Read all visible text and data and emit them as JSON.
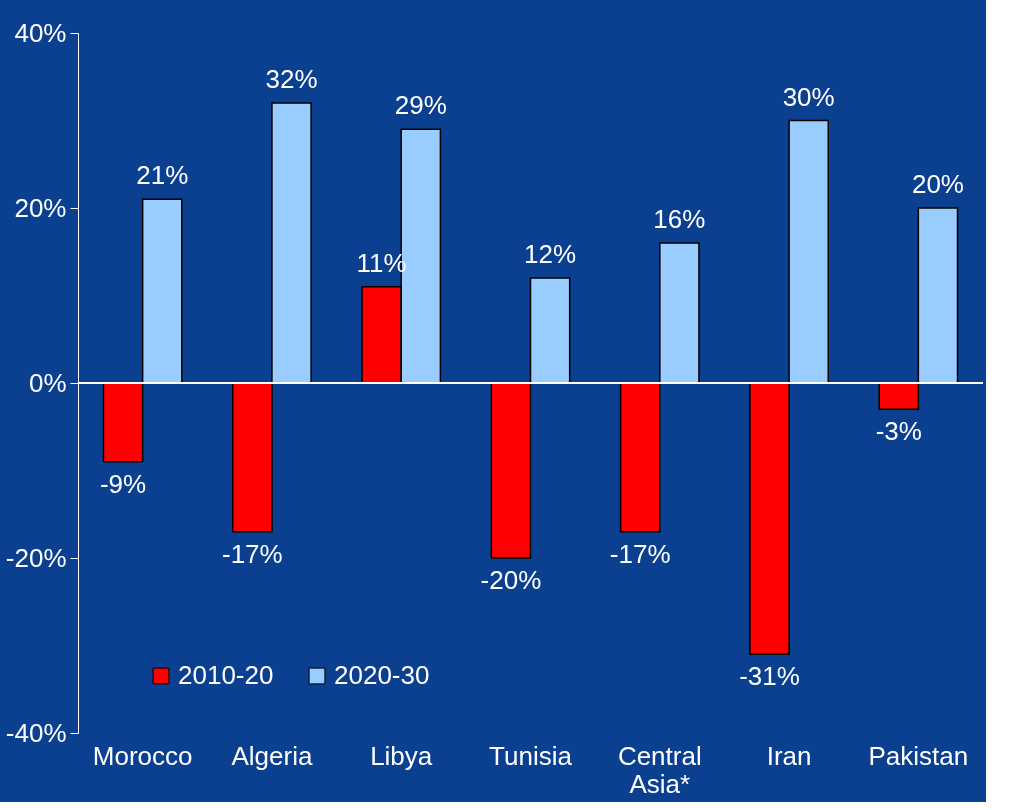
{
  "chart_data": {
    "type": "bar",
    "categories": [
      "Morocco",
      "Algeria",
      "Libya",
      "Tunisia",
      "Central Asia*",
      "Iran",
      "Pakistan"
    ],
    "series": [
      {
        "name": "2010-20",
        "color": "#ff0000",
        "values": [
          -9,
          -17,
          11,
          -20,
          -17,
          -31,
          -3
        ],
        "value_labels": [
          "-9%",
          "-17%",
          "11%",
          "-20%",
          "-17%",
          "-31%",
          "-3%"
        ]
      },
      {
        "name": "2020-30",
        "color": "#99ccff",
        "values": [
          21,
          32,
          29,
          12,
          16,
          30,
          20
        ],
        "value_labels": [
          "21%",
          "32%",
          "29%",
          "12%",
          "16%",
          "30%",
          "20%"
        ]
      }
    ],
    "ylim": [
      -40,
      40
    ],
    "yticks": [
      {
        "value": -40,
        "label": "-40%"
      },
      {
        "value": -20,
        "label": "-20%"
      },
      {
        "value": 0,
        "label": "0%"
      },
      {
        "value": 20,
        "label": "20%"
      },
      {
        "value": 40,
        "label": "40%"
      }
    ],
    "ref_lines": [
      {
        "axis": "y",
        "value": 0,
        "label": null,
        "color": "#ffffff"
      }
    ],
    "grid": false,
    "legend": "bottom left"
  }
}
